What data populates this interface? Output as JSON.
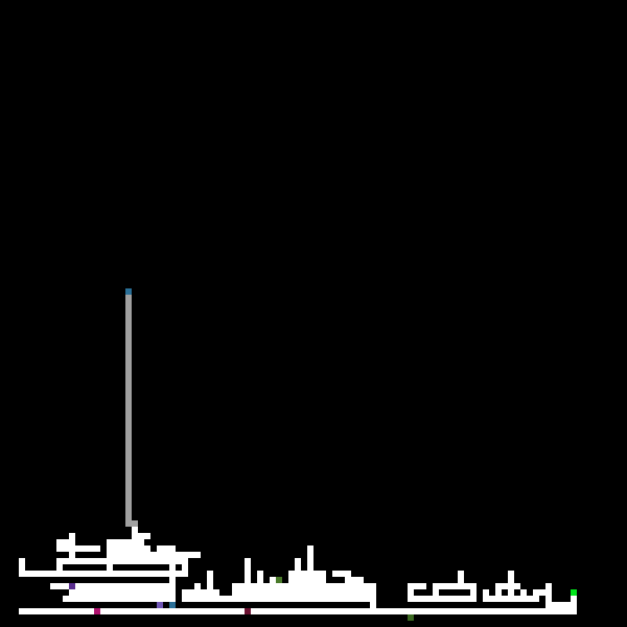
{
  "game": {
    "grid_size": 100,
    "colors": {
      "background": "#000000",
      "maze_wall": "#ffffff",
      "trail": "#a0a0a0"
    },
    "markers": [
      {
        "id": "player-agent",
        "label": "agent",
        "color": "#2a6f97"
      },
      {
        "id": "goal",
        "label": "goal",
        "color": "#00e51a"
      },
      {
        "id": "item-magenta",
        "label": "item",
        "color": "#b0126f"
      },
      {
        "id": "item-purple",
        "label": "item",
        "color": "#5a2e8f"
      },
      {
        "id": "item-blue",
        "label": "item",
        "color": "#2a6f97"
      },
      {
        "id": "item-darkred",
        "label": "item",
        "color": "#6a1030"
      },
      {
        "id": "item-olive",
        "label": "item",
        "color": "#4a7a2a"
      },
      {
        "id": "item-olive-2",
        "label": "item",
        "color": "#3c6a22"
      },
      {
        "id": "item-violet",
        "label": "item",
        "color": "#6f56b5"
      }
    ]
  }
}
